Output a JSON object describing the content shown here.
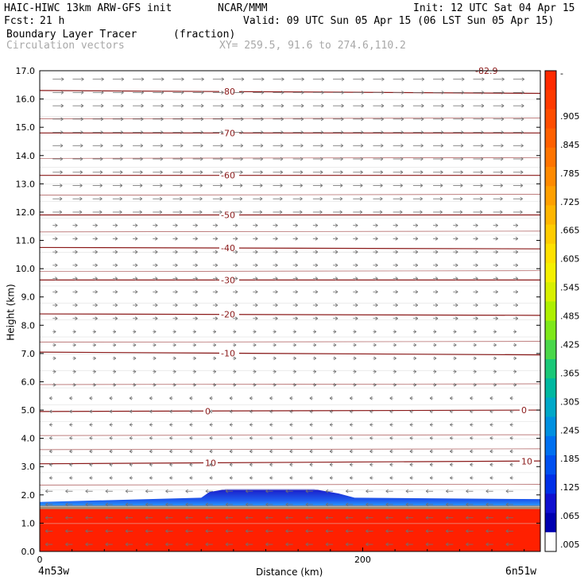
{
  "header": {
    "model": "HAIC-HIWC 13km ARW-GFS init",
    "org": "NCAR/MMM",
    "init": "Init: 12 UTC Sat 04 Apr 15",
    "fcst_label": "Fcst:",
    "fcst_value": "21 h",
    "valid": "Valid: 09 UTC Sun 05 Apr 15 (06 LST Sun 05 Apr 15)",
    "field": "Boundary Layer Tracer",
    "units": "(fraction)",
    "vectors": "Circulation vectors",
    "xy": "XY= 259.5, 91.6 to 274.6,110.2"
  },
  "chart_data": {
    "type": "heatmap",
    "xlabel": "Distance (km)",
    "ylabel": "Height (km)",
    "xlim": [
      0,
      310
    ],
    "ylim": [
      0,
      17
    ],
    "x_ticks": [
      0,
      200
    ],
    "x_tick_labels": [
      "0",
      "200"
    ],
    "y_ticks": [
      0,
      1,
      2,
      3,
      4,
      5,
      6,
      7,
      8,
      9,
      10,
      11,
      12,
      13,
      14,
      15,
      16,
      17
    ],
    "y_tick_labels": [
      "0.0",
      "1.0",
      "2.0",
      "3.0",
      "4.0",
      "5.0",
      "6.0",
      "7.0",
      "8.0",
      "9.0",
      "10.0",
      "11.0",
      "12.0",
      "13.0",
      "14.0",
      "15.0",
      "16.0",
      "17.0"
    ],
    "left_endpoint": "4n53w",
    "right_endpoint": "6n51w",
    "colorbar": {
      "labels": [
        "-",
        ".905",
        ".845",
        ".785",
        ".725",
        ".665",
        ".605",
        ".545",
        ".485",
        ".425",
        ".365",
        ".305",
        ".245",
        ".185",
        ".125",
        ".065",
        ".005"
      ],
      "colors": [
        "#ff2a00",
        "#ff3a00",
        "#ff4d00",
        "#ff6000",
        "#ff7400",
        "#ff8a00",
        "#ffa000",
        "#ffb600",
        "#ffcc00",
        "#ffe100",
        "#f5f000",
        "#d8f000",
        "#aef000",
        "#7ee81a",
        "#4ad84a",
        "#1ac878",
        "#00b8a0",
        "#00a8c8",
        "#0090e0",
        "#0070f0",
        "#0050f0",
        "#0030e8",
        "#1010d0",
        "#0000b0"
      ],
      "top_label": "-",
      "bottom_color": "#ffffff"
    },
    "temperature_contours": [
      {
        "value": -80,
        "height_left": 16.3,
        "height_right": 16.2,
        "label": "-80"
      },
      {
        "value": -70,
        "height_left": 14.8,
        "height_right": 14.8,
        "label": "-70"
      },
      {
        "value": -60,
        "height_left": 13.3,
        "height_right": 13.3,
        "label": "-60"
      },
      {
        "value": -50,
        "height_left": 11.9,
        "height_right": 11.9,
        "label": "-50"
      },
      {
        "value": -40,
        "height_left": 10.75,
        "height_right": 10.7,
        "label": "-40"
      },
      {
        "value": -30,
        "height_left": 9.6,
        "height_right": 9.6,
        "label": "-30"
      },
      {
        "value": -20,
        "height_left": 8.4,
        "height_right": 8.35,
        "label": "-20"
      },
      {
        "value": -10,
        "height_left": 7.05,
        "height_right": 6.95,
        "label": "-10"
      },
      {
        "value": 0,
        "height_left": 4.95,
        "height_right": 5.0,
        "label": "0"
      },
      {
        "value": 10,
        "height_left": 3.1,
        "height_right": 3.2,
        "label": "10"
      }
    ],
    "top_right_label": "-82.9",
    "boundary_layer_top_km": [
      {
        "x": 0,
        "h": 1.75
      },
      {
        "x": 100,
        "h": 1.9
      },
      {
        "x": 105,
        "h": 2.1
      },
      {
        "x": 115,
        "h": 2.2
      },
      {
        "x": 170,
        "h": 2.2
      },
      {
        "x": 185,
        "h": 2.05
      },
      {
        "x": 195,
        "h": 1.9
      },
      {
        "x": 310,
        "h": 1.85
      }
    ]
  }
}
